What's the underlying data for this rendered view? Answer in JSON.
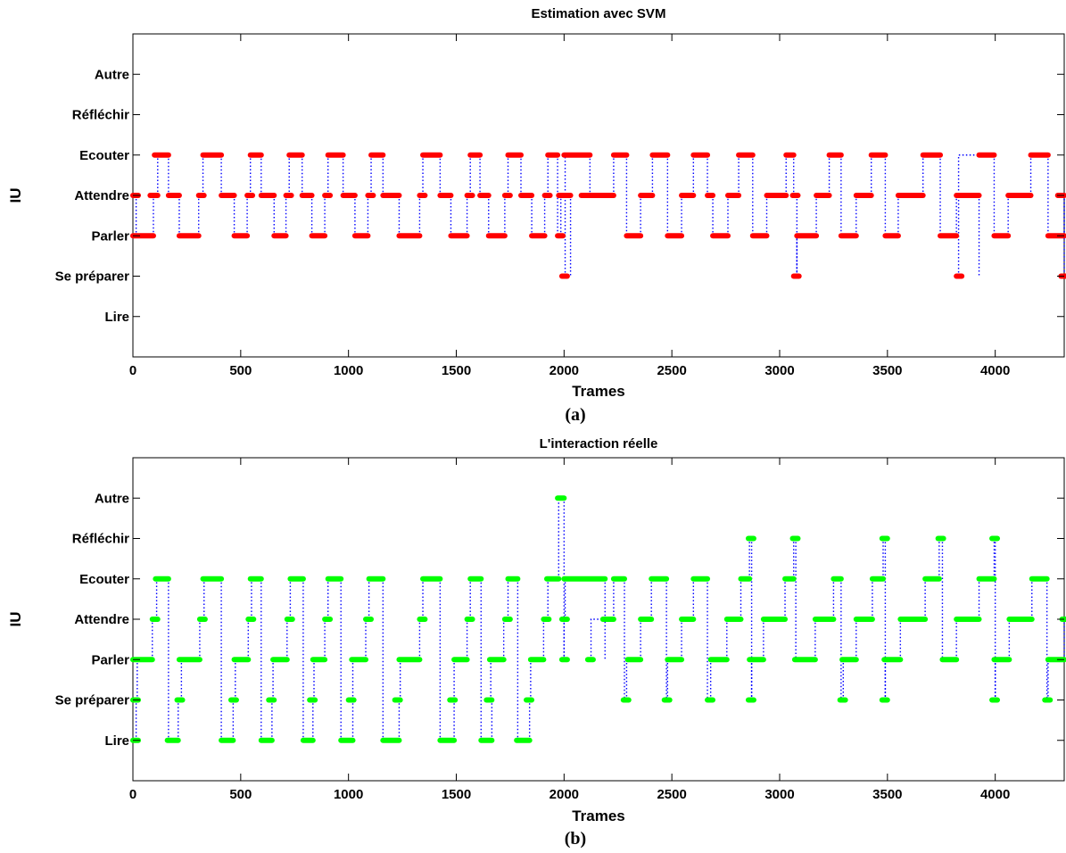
{
  "chart_data": [
    {
      "type": "line",
      "title": "Estimation avec SVM",
      "xlabel": "Trames",
      "ylabel": "IU",
      "caption": "(a)",
      "xlim": [
        0,
        4320
      ],
      "x_ticks": [
        0,
        500,
        1000,
        1500,
        2000,
        2500,
        3000,
        3500,
        4000
      ],
      "y_categories": [
        "Lire",
        "Se préparer",
        "Parler",
        "Attendre",
        "Ecouter",
        "Réfléchir",
        "Autre"
      ],
      "ylim": [
        0,
        8
      ],
      "grid": false,
      "colors": {
        "marker": "#ff0000",
        "transition": "#0000ff"
      },
      "series": [
        {
          "segments": [
            {
              "x0": 0,
              "x1": 15,
              "y": 4
            },
            {
              "x0": 0,
              "x1": 95,
              "y": 3
            },
            {
              "x0": 80,
              "x1": 115,
              "y": 4
            },
            {
              "x0": 100,
              "x1": 165,
              "y": 5
            },
            {
              "x0": 165,
              "x1": 215,
              "y": 4
            },
            {
              "x0": 215,
              "x1": 305,
              "y": 3
            },
            {
              "x0": 305,
              "x1": 325,
              "y": 4
            },
            {
              "x0": 325,
              "x1": 410,
              "y": 5
            },
            {
              "x0": 410,
              "x1": 470,
              "y": 4
            },
            {
              "x0": 470,
              "x1": 530,
              "y": 3
            },
            {
              "x0": 530,
              "x1": 545,
              "y": 4
            },
            {
              "x0": 545,
              "x1": 595,
              "y": 5
            },
            {
              "x0": 595,
              "x1": 655,
              "y": 4
            },
            {
              "x0": 655,
              "x1": 710,
              "y": 3
            },
            {
              "x0": 710,
              "x1": 725,
              "y": 4
            },
            {
              "x0": 725,
              "x1": 785,
              "y": 5
            },
            {
              "x0": 785,
              "x1": 830,
              "y": 4
            },
            {
              "x0": 830,
              "x1": 890,
              "y": 3
            },
            {
              "x0": 890,
              "x1": 905,
              "y": 4
            },
            {
              "x0": 905,
              "x1": 975,
              "y": 5
            },
            {
              "x0": 975,
              "x1": 1030,
              "y": 4
            },
            {
              "x0": 1030,
              "x1": 1090,
              "y": 3
            },
            {
              "x0": 1090,
              "x1": 1105,
              "y": 4
            },
            {
              "x0": 1105,
              "x1": 1160,
              "y": 5
            },
            {
              "x0": 1160,
              "x1": 1235,
              "y": 4
            },
            {
              "x0": 1235,
              "x1": 1330,
              "y": 3
            },
            {
              "x0": 1330,
              "x1": 1345,
              "y": 4
            },
            {
              "x0": 1345,
              "x1": 1425,
              "y": 5
            },
            {
              "x0": 1425,
              "x1": 1475,
              "y": 4
            },
            {
              "x0": 1475,
              "x1": 1550,
              "y": 3
            },
            {
              "x0": 1550,
              "x1": 1565,
              "y": 4
            },
            {
              "x0": 1565,
              "x1": 1610,
              "y": 5
            },
            {
              "x0": 1610,
              "x1": 1650,
              "y": 4
            },
            {
              "x0": 1650,
              "x1": 1725,
              "y": 3
            },
            {
              "x0": 1725,
              "x1": 1740,
              "y": 4
            },
            {
              "x0": 1740,
              "x1": 1800,
              "y": 5
            },
            {
              "x0": 1800,
              "x1": 1850,
              "y": 4
            },
            {
              "x0": 1850,
              "x1": 1910,
              "y": 3
            },
            {
              "x0": 1910,
              "x1": 1925,
              "y": 4
            },
            {
              "x0": 1925,
              "x1": 1970,
              "y": 5
            },
            {
              "x0": 1970,
              "x1": 1985,
              "y": 3
            },
            {
              "x0": 1975,
              "x1": 2030,
              "y": 4
            },
            {
              "x0": 1990,
              "x1": 2005,
              "y": 2
            },
            {
              "x0": 2000,
              "x1": 2120,
              "y": 5
            },
            {
              "x0": 2080,
              "x1": 2120,
              "y": 4
            },
            {
              "x0": 2120,
              "x1": 2230,
              "y": 4
            },
            {
              "x0": 2230,
              "x1": 2290,
              "y": 5
            },
            {
              "x0": 2290,
              "x1": 2355,
              "y": 3
            },
            {
              "x0": 2355,
              "x1": 2410,
              "y": 4
            },
            {
              "x0": 2410,
              "x1": 2480,
              "y": 5
            },
            {
              "x0": 2480,
              "x1": 2545,
              "y": 3
            },
            {
              "x0": 2545,
              "x1": 2600,
              "y": 4
            },
            {
              "x0": 2600,
              "x1": 2665,
              "y": 5
            },
            {
              "x0": 2665,
              "x1": 2690,
              "y": 4
            },
            {
              "x0": 2690,
              "x1": 2760,
              "y": 3
            },
            {
              "x0": 2760,
              "x1": 2810,
              "y": 4
            },
            {
              "x0": 2810,
              "x1": 2875,
              "y": 5
            },
            {
              "x0": 2875,
              "x1": 2940,
              "y": 3
            },
            {
              "x0": 2940,
              "x1": 3030,
              "y": 4
            },
            {
              "x0": 3030,
              "x1": 3065,
              "y": 5
            },
            {
              "x0": 3060,
              "x1": 3080,
              "y": 4
            },
            {
              "x0": 3065,
              "x1": 3080,
              "y": 2
            },
            {
              "x0": 3080,
              "x1": 3170,
              "y": 3
            },
            {
              "x0": 3170,
              "x1": 3230,
              "y": 4
            },
            {
              "x0": 3230,
              "x1": 3285,
              "y": 5
            },
            {
              "x0": 3285,
              "x1": 3355,
              "y": 3
            },
            {
              "x0": 3355,
              "x1": 3425,
              "y": 4
            },
            {
              "x0": 3425,
              "x1": 3490,
              "y": 5
            },
            {
              "x0": 3490,
              "x1": 3550,
              "y": 3
            },
            {
              "x0": 3550,
              "x1": 3665,
              "y": 4
            },
            {
              "x0": 3665,
              "x1": 3745,
              "y": 5
            },
            {
              "x0": 3745,
              "x1": 3820,
              "y": 3
            },
            {
              "x0": 3820,
              "x1": 3925,
              "y": 4
            },
            {
              "x0": 3820,
              "x1": 3830,
              "y": 2
            },
            {
              "x0": 3925,
              "x1": 3995,
              "y": 5
            },
            {
              "x0": 3995,
              "x1": 4060,
              "y": 3
            },
            {
              "x0": 4060,
              "x1": 4165,
              "y": 4
            },
            {
              "x0": 4165,
              "x1": 4245,
              "y": 5
            },
            {
              "x0": 4245,
              "x1": 4320,
              "y": 3
            },
            {
              "x0": 4290,
              "x1": 4320,
              "y": 4
            },
            {
              "x0": 4305,
              "x1": 4320,
              "y": 2
            }
          ]
        }
      ]
    },
    {
      "type": "line",
      "title": "L'interaction réelle",
      "xlabel": "Trames",
      "ylabel": "IU",
      "caption": "(b)",
      "xlim": [
        0,
        4320
      ],
      "x_ticks": [
        0,
        500,
        1000,
        1500,
        2000,
        2500,
        3000,
        3500,
        4000
      ],
      "y_categories": [
        "Lire",
        "Se préparer",
        "Parler",
        "Attendre",
        "Ecouter",
        "Réfléchir",
        "Autre"
      ],
      "ylim": [
        0,
        8
      ],
      "grid": false,
      "colors": {
        "marker": "#00ff00",
        "transition": "#0000ff"
      },
      "series": [
        {
          "segments": [
            {
              "x0": 0,
              "x1": 15,
              "y": 1
            },
            {
              "x0": 0,
              "x1": 20,
              "y": 2
            },
            {
              "x0": 0,
              "x1": 90,
              "y": 3
            },
            {
              "x0": 90,
              "x1": 110,
              "y": 4
            },
            {
              "x0": 105,
              "x1": 165,
              "y": 5
            },
            {
              "x0": 160,
              "x1": 210,
              "y": 1
            },
            {
              "x0": 205,
              "x1": 225,
              "y": 2
            },
            {
              "x0": 215,
              "x1": 310,
              "y": 3
            },
            {
              "x0": 310,
              "x1": 330,
              "y": 4
            },
            {
              "x0": 325,
              "x1": 410,
              "y": 5
            },
            {
              "x0": 410,
              "x1": 465,
              "y": 1
            },
            {
              "x0": 455,
              "x1": 475,
              "y": 2
            },
            {
              "x0": 470,
              "x1": 535,
              "y": 3
            },
            {
              "x0": 535,
              "x1": 550,
              "y": 4
            },
            {
              "x0": 545,
              "x1": 595,
              "y": 5
            },
            {
              "x0": 595,
              "x1": 645,
              "y": 1
            },
            {
              "x0": 630,
              "x1": 650,
              "y": 2
            },
            {
              "x0": 650,
              "x1": 715,
              "y": 3
            },
            {
              "x0": 715,
              "x1": 730,
              "y": 4
            },
            {
              "x0": 730,
              "x1": 790,
              "y": 5
            },
            {
              "x0": 790,
              "x1": 835,
              "y": 1
            },
            {
              "x0": 820,
              "x1": 840,
              "y": 2
            },
            {
              "x0": 835,
              "x1": 890,
              "y": 3
            },
            {
              "x0": 890,
              "x1": 905,
              "y": 4
            },
            {
              "x0": 905,
              "x1": 965,
              "y": 5
            },
            {
              "x0": 965,
              "x1": 1020,
              "y": 1
            },
            {
              "x0": 1000,
              "x1": 1020,
              "y": 2
            },
            {
              "x0": 1015,
              "x1": 1080,
              "y": 3
            },
            {
              "x0": 1080,
              "x1": 1095,
              "y": 4
            },
            {
              "x0": 1095,
              "x1": 1160,
              "y": 5
            },
            {
              "x0": 1160,
              "x1": 1235,
              "y": 1
            },
            {
              "x0": 1215,
              "x1": 1240,
              "y": 2
            },
            {
              "x0": 1235,
              "x1": 1330,
              "y": 3
            },
            {
              "x0": 1330,
              "x1": 1345,
              "y": 4
            },
            {
              "x0": 1345,
              "x1": 1425,
              "y": 5
            },
            {
              "x0": 1425,
              "x1": 1490,
              "y": 1
            },
            {
              "x0": 1470,
              "x1": 1490,
              "y": 2
            },
            {
              "x0": 1490,
              "x1": 1550,
              "y": 3
            },
            {
              "x0": 1550,
              "x1": 1565,
              "y": 4
            },
            {
              "x0": 1565,
              "x1": 1615,
              "y": 5
            },
            {
              "x0": 1615,
              "x1": 1665,
              "y": 1
            },
            {
              "x0": 1640,
              "x1": 1660,
              "y": 2
            },
            {
              "x0": 1655,
              "x1": 1720,
              "y": 3
            },
            {
              "x0": 1725,
              "x1": 1740,
              "y": 4
            },
            {
              "x0": 1740,
              "x1": 1785,
              "y": 5
            },
            {
              "x0": 1780,
              "x1": 1840,
              "y": 1
            },
            {
              "x0": 1825,
              "x1": 1845,
              "y": 2
            },
            {
              "x0": 1845,
              "x1": 1905,
              "y": 3
            },
            {
              "x0": 1905,
              "x1": 1925,
              "y": 4
            },
            {
              "x0": 1920,
              "x1": 1975,
              "y": 5
            },
            {
              "x0": 1970,
              "x1": 2000,
              "y": 7
            },
            {
              "x0": 1990,
              "x1": 2000,
              "y": 3
            },
            {
              "x0": 1990,
              "x1": 2005,
              "y": 4
            },
            {
              "x0": 2000,
              "x1": 2190,
              "y": 5
            },
            {
              "x0": 2110,
              "x1": 2125,
              "y": 3
            },
            {
              "x0": 2180,
              "x1": 2230,
              "y": 4
            },
            {
              "x0": 2230,
              "x1": 2280,
              "y": 5
            },
            {
              "x0": 2275,
              "x1": 2290,
              "y": 2
            },
            {
              "x0": 2295,
              "x1": 2355,
              "y": 3
            },
            {
              "x0": 2355,
              "x1": 2405,
              "y": 4
            },
            {
              "x0": 2405,
              "x1": 2475,
              "y": 5
            },
            {
              "x0": 2465,
              "x1": 2480,
              "y": 2
            },
            {
              "x0": 2480,
              "x1": 2545,
              "y": 3
            },
            {
              "x0": 2545,
              "x1": 2600,
              "y": 4
            },
            {
              "x0": 2600,
              "x1": 2665,
              "y": 5
            },
            {
              "x0": 2665,
              "x1": 2680,
              "y": 2
            },
            {
              "x0": 2680,
              "x1": 2755,
              "y": 3
            },
            {
              "x0": 2755,
              "x1": 2820,
              "y": 4
            },
            {
              "x0": 2820,
              "x1": 2860,
              "y": 5
            },
            {
              "x0": 2855,
              "x1": 2870,
              "y": 6
            },
            {
              "x0": 2855,
              "x1": 2870,
              "y": 2
            },
            {
              "x0": 2860,
              "x1": 2925,
              "y": 3
            },
            {
              "x0": 2925,
              "x1": 3025,
              "y": 4
            },
            {
              "x0": 3025,
              "x1": 3065,
              "y": 5
            },
            {
              "x0": 3060,
              "x1": 3075,
              "y": 6
            },
            {
              "x0": 3070,
              "x1": 3165,
              "y": 3
            },
            {
              "x0": 3165,
              "x1": 3250,
              "y": 4
            },
            {
              "x0": 3250,
              "x1": 3285,
              "y": 5
            },
            {
              "x0": 3280,
              "x1": 3295,
              "y": 2
            },
            {
              "x0": 3290,
              "x1": 3355,
              "y": 3
            },
            {
              "x0": 3355,
              "x1": 3430,
              "y": 4
            },
            {
              "x0": 3430,
              "x1": 3480,
              "y": 5
            },
            {
              "x0": 3475,
              "x1": 3490,
              "y": 6
            },
            {
              "x0": 3475,
              "x1": 3490,
              "y": 2
            },
            {
              "x0": 3485,
              "x1": 3560,
              "y": 3
            },
            {
              "x0": 3560,
              "x1": 3675,
              "y": 4
            },
            {
              "x0": 3675,
              "x1": 3740,
              "y": 5
            },
            {
              "x0": 3735,
              "x1": 3755,
              "y": 6
            },
            {
              "x0": 3755,
              "x1": 3820,
              "y": 3
            },
            {
              "x0": 3820,
              "x1": 3925,
              "y": 4
            },
            {
              "x0": 3925,
              "x1": 3995,
              "y": 5
            },
            {
              "x0": 3985,
              "x1": 4000,
              "y": 6
            },
            {
              "x0": 3985,
              "x1": 4000,
              "y": 2
            },
            {
              "x0": 3995,
              "x1": 4065,
              "y": 3
            },
            {
              "x0": 4065,
              "x1": 4170,
              "y": 4
            },
            {
              "x0": 4170,
              "x1": 4240,
              "y": 5
            },
            {
              "x0": 4230,
              "x1": 4245,
              "y": 2
            },
            {
              "x0": 4245,
              "x1": 4320,
              "y": 3
            },
            {
              "x0": 4310,
              "x1": 4320,
              "y": 4
            }
          ]
        }
      ]
    }
  ]
}
